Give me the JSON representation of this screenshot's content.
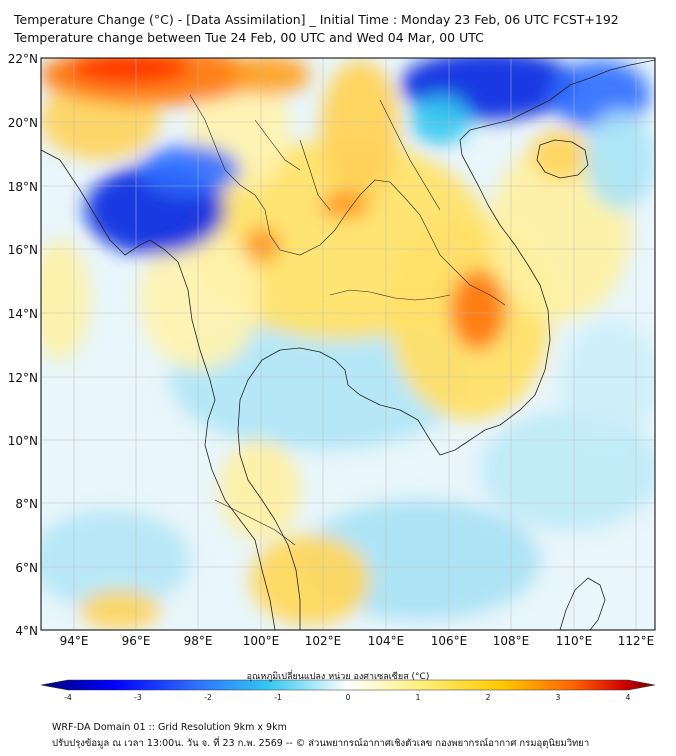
{
  "title_line1": "Temperature Change (°C) - [Data Assimilation] _ Initial Time : Monday 23 Feb, 06 UTC FCST+192",
  "title_line2": "Temperature change between Tue 24 Feb, 00 UTC and Wed 04 Mar, 00 UTC",
  "lon_ticks": [
    "94°E",
    "96°E",
    "98°E",
    "100°E",
    "102°E",
    "104°E",
    "106°E",
    "108°E",
    "110°E",
    "112°E"
  ],
  "lat_ticks": [
    "22°N",
    "20°N",
    "18°N",
    "16°N",
    "14°N",
    "12°N",
    "10°N",
    "8°N",
    "6°N",
    "4°N"
  ],
  "colorbar": {
    "label": "อุณหภูมิเปลี่ยนแปลง หน่วย องศาเซลเซียส (°C)",
    "ticks": [
      "-4",
      "-3",
      "-2",
      "-1",
      "0",
      "1",
      "2",
      "3",
      "4"
    ],
    "min": -4,
    "max": 4,
    "colors": [
      "#00007a",
      "#0000ff",
      "#2f6dff",
      "#33c8f0",
      "#ffffff",
      "#ffef7a",
      "#ffc800",
      "#ff6000",
      "#d00000",
      "#6a0000"
    ]
  },
  "footer_line1": "WRF-DA Domain 01 :: Grid Resolution 9km x 9km",
  "footer_line2": "ปรับปรุงข้อมูล ณ เวลา 13:00น. วัน จ. ที่ 23 ก.พ. 2569 -- © ส่วนพยากรณ์อากาศเชิงตัวเลข กองพยากรณ์อากาศ กรมอุตุนิยมวิทยา"
}
